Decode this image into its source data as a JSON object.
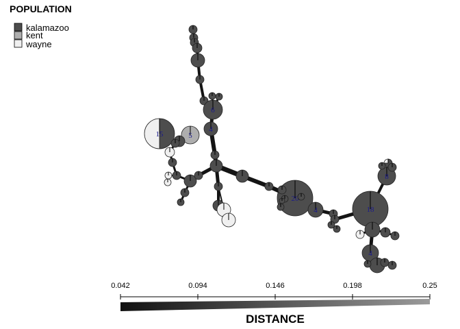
{
  "chart_data": {
    "type": "network",
    "legend": {
      "title": "POPULATION",
      "entries": [
        {
          "name": "kalamazoo",
          "color": "#4d4d4d"
        },
        {
          "name": "kent",
          "color": "#aeaeae"
        },
        {
          "name": "wayne",
          "color": "#f0f0f0"
        }
      ]
    },
    "edge_color_scale": {
      "title": "DISTANCE",
      "ticks": [
        "0.042",
        "0.094",
        "0.146",
        "0.198",
        "0.25"
      ],
      "min": 0.042,
      "max": 0.25,
      "color_min": "#111111",
      "color_max": "#9a9a9a"
    },
    "node_labels": [
      "15",
      "5",
      "6",
      "4",
      "20",
      "18",
      "8",
      "4",
      "4"
    ]
  }
}
